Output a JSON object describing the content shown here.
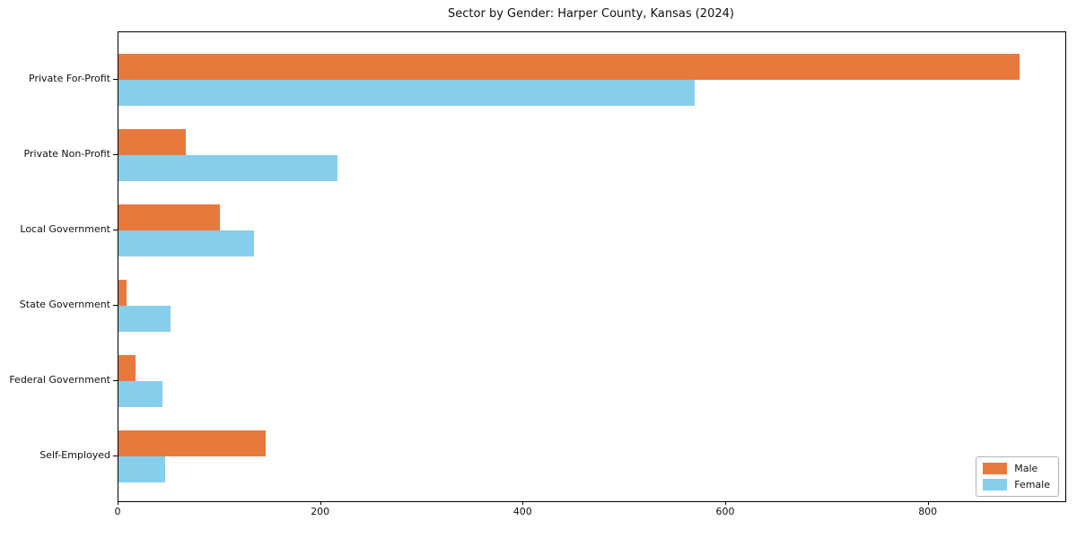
{
  "chart_data": {
    "type": "bar",
    "orientation": "horizontal",
    "title": "Sector by Gender: Harper County, Kansas (2024)",
    "categories": [
      "Private For-Profit",
      "Private Non-Profit",
      "Local Government",
      "State Government",
      "Federal Government",
      "Self-Employed"
    ],
    "series": [
      {
        "name": "Male",
        "color": "#E8793D",
        "values": [
          890,
          66,
          100,
          8,
          17,
          145
        ]
      },
      {
        "name": "Female",
        "color": "#87CEEB",
        "values": [
          569,
          216,
          134,
          51,
          43,
          46
        ]
      }
    ],
    "xlabel": "",
    "ylabel": "",
    "x_ticks": [
      0,
      200,
      400,
      600,
      800
    ],
    "xlim": [
      0,
      935
    ],
    "grid": false,
    "legend": {
      "position": "lower-right",
      "entries": [
        "Male",
        "Female"
      ]
    }
  },
  "colors": {
    "background": "#ffffff",
    "spine": "#000000",
    "text": "#111111",
    "legend_border": "#b3b3b3",
    "male": "#E8793D",
    "female": "#87CEEB"
  }
}
